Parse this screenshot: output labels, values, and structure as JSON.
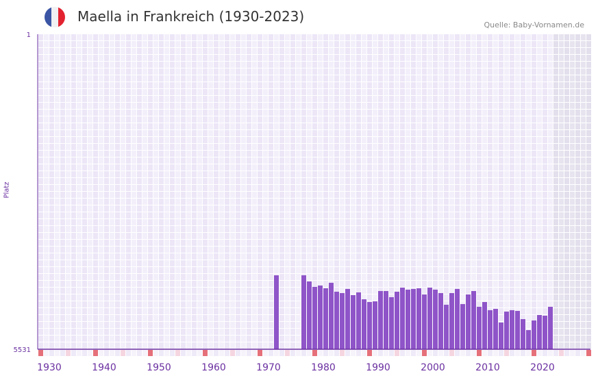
{
  "header": {
    "title": "Maella in Frankreich (1930-2023)",
    "source": "Quelle: Baby-Vornamen.de",
    "flag": "france-flag-icon"
  },
  "colors": {
    "bar": "#8e54c8",
    "axis": "#6a2fa0",
    "marker_red": "#e5707a",
    "marker_pink": "#f5d6e0",
    "grid_a": "#f3effa",
    "grid_b": "#ece6f7",
    "future": "#e3dfeb"
  },
  "chart_data": {
    "type": "bar",
    "title": "Maella in Frankreich (1930-2023)",
    "xlabel": "",
    "ylabel": "Platz",
    "ylim": [
      5531,
      1
    ],
    "y_ticks": [
      "1",
      "5531"
    ],
    "x_ticks": [
      "1930",
      "1940",
      "1950",
      "1960",
      "1970",
      "1980",
      "1990",
      "2000",
      "2010",
      "2020"
    ],
    "xlim": [
      1928,
      2028
    ],
    "x": [
      1971,
      1976,
      1977,
      1978,
      1979,
      1980,
      1981,
      1982,
      1983,
      1984,
      1985,
      1986,
      1987,
      1988,
      1989,
      1990,
      1991,
      1992,
      1993,
      1994,
      1995,
      1996,
      1997,
      1998,
      1999,
      2000,
      2001,
      2002,
      2003,
      2004,
      2005,
      2006,
      2007,
      2008,
      2009,
      2010,
      2011,
      2012,
      2013,
      2014,
      2015,
      2016,
      2017,
      2018,
      2019,
      2020,
      2021
    ],
    "values": [
      4233,
      4233,
      4341,
      4437,
      4412,
      4461,
      4364,
      4521,
      4545,
      4473,
      4581,
      4533,
      4654,
      4702,
      4690,
      4509,
      4509,
      4617,
      4521,
      4449,
      4485,
      4473,
      4461,
      4569,
      4449,
      4485,
      4545,
      4750,
      4545,
      4473,
      4738,
      4569,
      4509,
      4786,
      4702,
      4846,
      4822,
      5062,
      4870,
      4846,
      4858,
      5002,
      5195,
      5026,
      4930,
      4942,
      4786
    ]
  }
}
